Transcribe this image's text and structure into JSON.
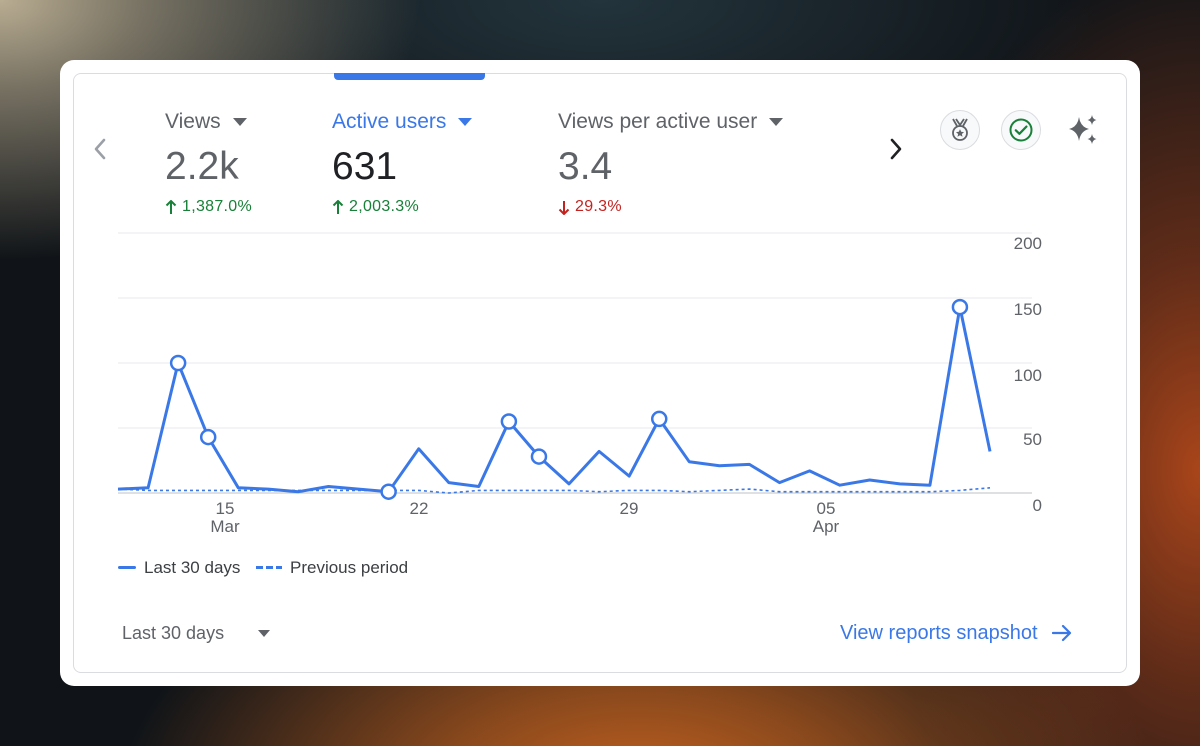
{
  "metrics": [
    {
      "label": "Views",
      "value": "2.2k",
      "change": "1,387.0%",
      "direction": "up"
    },
    {
      "label": "Active users",
      "value": "631",
      "change": "2,003.3%",
      "direction": "up"
    },
    {
      "label": "Views per active user",
      "value": "3.4",
      "change": "29.3%",
      "direction": "down"
    }
  ],
  "selected_metric": "Active users",
  "header_icons": [
    "medal-icon",
    "check-circle-icon",
    "sparkle-icon"
  ],
  "colors": {
    "accent": "#3b78e7",
    "positive": "#188038",
    "negative": "#c5221f"
  },
  "chart_data": {
    "type": "line",
    "x_tick_labels": [
      {
        "day": "15",
        "month": "Mar"
      },
      {
        "day": "22",
        "month": ""
      },
      {
        "day": "29",
        "month": ""
      },
      {
        "day": "05",
        "month": "Apr"
      }
    ],
    "y_ticks": [
      "200",
      "150",
      "100",
      "50",
      "0"
    ],
    "ylim": [
      0,
      200
    ],
    "x": [
      "Mar 11",
      "Mar 12",
      "Mar 13",
      "Mar 14",
      "Mar 15",
      "Mar 16",
      "Mar 17",
      "Mar 18",
      "Mar 19",
      "Mar 20",
      "Mar 21",
      "Mar 22",
      "Mar 23",
      "Mar 24",
      "Mar 25",
      "Mar 26",
      "Mar 27",
      "Mar 28",
      "Mar 29",
      "Mar 30",
      "Mar 31",
      "Apr 1",
      "Apr 2",
      "Apr 3",
      "Apr 4",
      "Apr 5",
      "Apr 6",
      "Apr 7",
      "Apr 8",
      "Apr 9"
    ],
    "series": [
      {
        "name": "Last 30 days",
        "style": "solid",
        "values": [
          3,
          4,
          100,
          43,
          4,
          3,
          1,
          5,
          3,
          1,
          34,
          8,
          5,
          55,
          28,
          7,
          32,
          13,
          57,
          24,
          21,
          22,
          8,
          17,
          6,
          10,
          7,
          6,
          143,
          32
        ],
        "markers": [
          2,
          3,
          9,
          13,
          14,
          18,
          28
        ]
      },
      {
        "name": "Previous period",
        "style": "dashed",
        "values": [
          3,
          2,
          2,
          2,
          2,
          2,
          2,
          2,
          2,
          2,
          2,
          0,
          2,
          2,
          2,
          2,
          1,
          2,
          2,
          1,
          2,
          3,
          1,
          1,
          1,
          1,
          1,
          1,
          2,
          4
        ],
        "markers": []
      }
    ],
    "grid": true,
    "legend_position": "bottom-left"
  },
  "footer": {
    "period_label": "Last 30 days",
    "link_label": "View reports snapshot"
  }
}
